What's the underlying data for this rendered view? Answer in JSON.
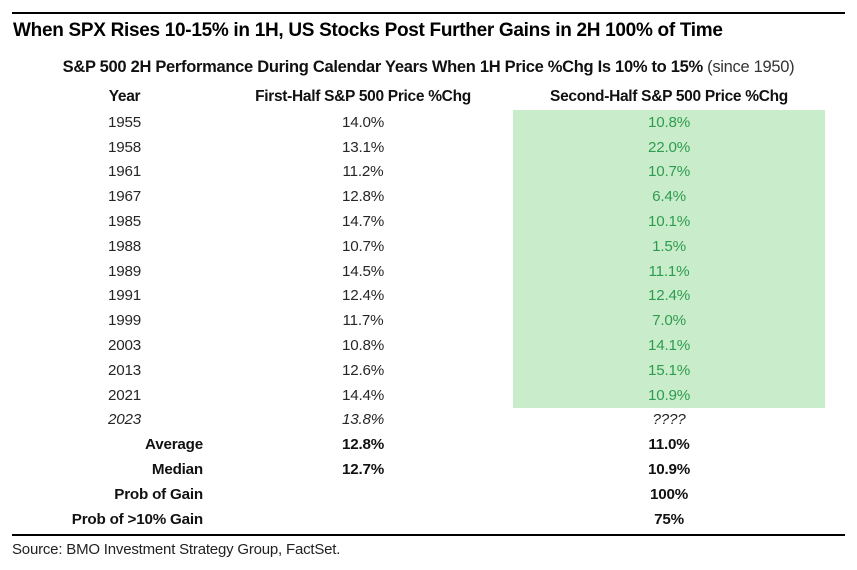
{
  "title": "When SPX Rises 10-15% in 1H, US Stocks Post Further Gains in 2H 100% of Time",
  "subtitle": {
    "main": "S&P 500 2H Performance During Calendar Years When 1H Price %Chg Is 10% to 15%",
    "note": " (since 1950)"
  },
  "table": {
    "columns": [
      "Year",
      "First-Half S&P 500 Price %Chg",
      "Second-Half S&P 500 Price %Chg"
    ],
    "rows": [
      {
        "year": "1955",
        "first": "14.0%",
        "second": "10.8%"
      },
      {
        "year": "1958",
        "first": "13.1%",
        "second": "22.0%"
      },
      {
        "year": "1961",
        "first": "11.2%",
        "second": "10.7%"
      },
      {
        "year": "1967",
        "first": "12.8%",
        "second": "6.4%"
      },
      {
        "year": "1985",
        "first": "14.7%",
        "second": "10.1%"
      },
      {
        "year": "1988",
        "first": "10.7%",
        "second": "1.5%"
      },
      {
        "year": "1989",
        "first": "14.5%",
        "second": "11.1%"
      },
      {
        "year": "1991",
        "first": "12.4%",
        "second": "12.4%"
      },
      {
        "year": "1999",
        "first": "11.7%",
        "second": "7.0%"
      },
      {
        "year": "2003",
        "first": "10.8%",
        "second": "14.1%"
      },
      {
        "year": "2013",
        "first": "12.6%",
        "second": "15.1%"
      },
      {
        "year": "2021",
        "first": "14.4%",
        "second": "10.9%"
      },
      {
        "year": "2023",
        "first": "13.8%",
        "second": "????"
      }
    ],
    "summary": [
      {
        "label": "Average",
        "first": "12.8%",
        "second": "11.0%"
      },
      {
        "label": "Median",
        "first": "12.7%",
        "second": "10.9%"
      },
      {
        "label": "Prob of Gain",
        "first": "",
        "second": "100%"
      },
      {
        "label": "Prob of >10% Gain",
        "first": "",
        "second": "75%"
      }
    ]
  },
  "source": "Source: BMO Investment Strategy Group, FactSet.",
  "colors": {
    "highlight_bg": "#c9ecca",
    "highlight_text": "#2e9c4f",
    "text": "#1a1a1a"
  },
  "chart_data": {
    "type": "table",
    "title": "When SPX Rises 10-15% in 1H, US Stocks Post Further Gains in 2H 100% of Time",
    "subtitle": "S&P 500 2H Performance During Calendar Years When 1H Price %Chg Is 10% to 15% (since 1950)",
    "columns": [
      "Year",
      "First-Half S&P 500 Price %Chg",
      "Second-Half S&P 500 Price %Chg"
    ],
    "rows": [
      [
        1955,
        14.0,
        10.8
      ],
      [
        1958,
        13.1,
        22.0
      ],
      [
        1961,
        11.2,
        10.7
      ],
      [
        1967,
        12.8,
        6.4
      ],
      [
        1985,
        14.7,
        10.1
      ],
      [
        1988,
        10.7,
        1.5
      ],
      [
        1989,
        14.5,
        11.1
      ],
      [
        1991,
        12.4,
        12.4
      ],
      [
        1999,
        11.7,
        7.0
      ],
      [
        2003,
        10.8,
        14.1
      ],
      [
        2013,
        12.6,
        15.1
      ],
      [
        2021,
        14.4,
        10.9
      ],
      [
        2023,
        13.8,
        null
      ]
    ],
    "summary": {
      "average": {
        "first_half": 12.8,
        "second_half": 11.0
      },
      "median": {
        "first_half": 12.7,
        "second_half": 10.9
      },
      "prob_of_gain_second_half": 100,
      "prob_of_gt10pct_gain_second_half": 75
    },
    "highlighted_column": "Second-Half S&P 500 Price %Chg",
    "highlighted_years": [
      1955,
      1958,
      1961,
      1967,
      1985,
      1988,
      1989,
      1991,
      1999,
      2003,
      2013,
      2021
    ],
    "source": "Source: BMO Investment Strategy Group, FactSet."
  }
}
